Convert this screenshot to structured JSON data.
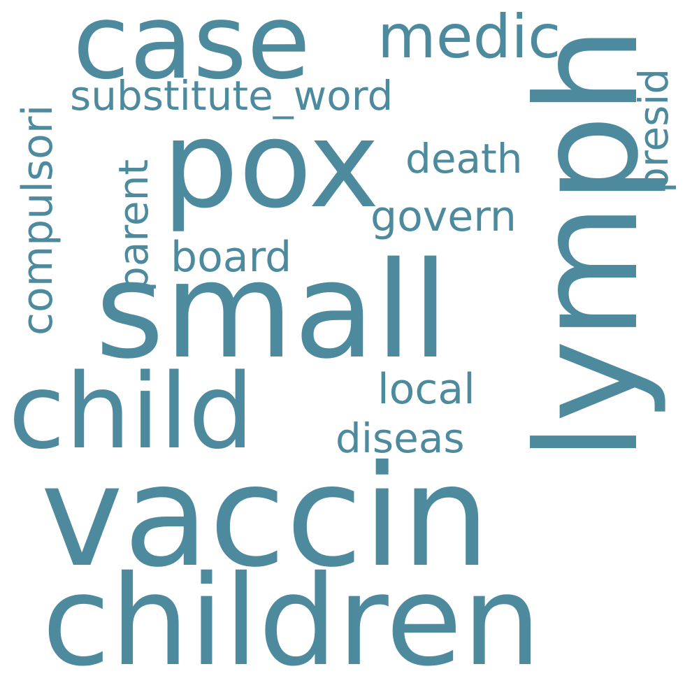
{
  "color": "#4d8a9e",
  "words": {
    "case": "case",
    "medic": "medic",
    "substitute_word": "substitute_word",
    "pox": "pox",
    "death": "death",
    "govern": "govern",
    "board": "board",
    "small": "small",
    "local": "local",
    "child": "child",
    "diseas": "diseas",
    "vaccin": "vaccin",
    "children": "children",
    "compulsori": "compulsori",
    "parent": "parent",
    "lymph": "lymph",
    "presid": "presid"
  }
}
